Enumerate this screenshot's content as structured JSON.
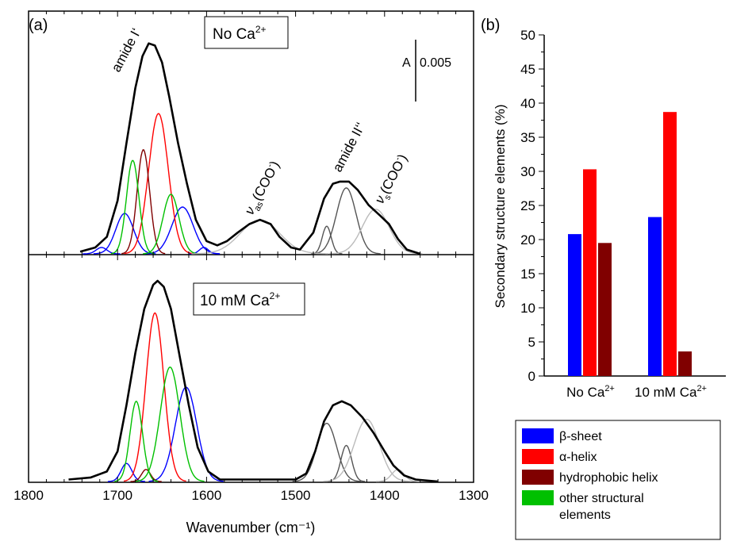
{
  "chart_data": [
    {
      "panel": "(a)",
      "type": "line",
      "xlabel": "Wavenumber (cm⁻¹)",
      "x_ticks": [
        1800,
        1700,
        1600,
        1500,
        1400,
        1300
      ],
      "xlim": [
        1800,
        1300
      ],
      "scale_bar": {
        "label": "A",
        "value": "0.005"
      },
      "subplots": [
        {
          "box_label": {
            "main": "No Ca",
            "sup": "2+"
          },
          "annotations": {
            "amide1": "amide I‘",
            "amide2": "amide II‘‘",
            "nu_as_base": "ν",
            "nu_as_sub": "as",
            "nu_as_paren": "(COO",
            "nu_as_sup": "-",
            "nu_as_close": ")",
            "nu_s_base": "ν",
            "nu_s_sub": "s",
            "nu_s_paren": "(COO",
            "nu_s_sup": "-",
            "nu_s_close": ")"
          },
          "envelope": [
            [
              1742,
              0.01
            ],
            [
              1725,
              0.03
            ],
            [
              1712,
              0.08
            ],
            [
              1700,
              0.25
            ],
            [
              1690,
              0.52
            ],
            [
              1680,
              0.78
            ],
            [
              1672,
              0.93
            ],
            [
              1665,
              0.99
            ],
            [
              1658,
              0.98
            ],
            [
              1650,
              0.9
            ],
            [
              1642,
              0.74
            ],
            [
              1632,
              0.52
            ],
            [
              1622,
              0.33
            ],
            [
              1612,
              0.16
            ],
            [
              1600,
              0.06
            ],
            [
              1588,
              0.04
            ],
            [
              1577,
              0.06
            ],
            [
              1565,
              0.1
            ],
            [
              1552,
              0.14
            ],
            [
              1540,
              0.16
            ],
            [
              1528,
              0.14
            ],
            [
              1518,
              0.08
            ],
            [
              1505,
              0.03
            ],
            [
              1495,
              0.02
            ],
            [
              1480,
              0.1
            ],
            [
              1468,
              0.26
            ],
            [
              1458,
              0.33
            ],
            [
              1450,
              0.34
            ],
            [
              1440,
              0.34
            ],
            [
              1430,
              0.3
            ],
            [
              1418,
              0.23
            ],
            [
              1405,
              0.18
            ],
            [
              1395,
              0.14
            ],
            [
              1385,
              0.07
            ],
            [
              1375,
              0.02
            ],
            [
              1360,
              0.0
            ]
          ],
          "components": [
            {
              "name": "β-sheet",
              "color": "#0000ff",
              "peaks": [
                {
                  "center": 1692,
                  "height": 0.19,
                  "width": 10
                },
                {
                  "center": 1627,
                  "height": 0.22,
                  "width": 12
                },
                {
                  "center": 1718,
                  "height": 0.03,
                  "width": 6
                },
                {
                  "center": 1603,
                  "height": 0.03,
                  "width": 5
                }
              ]
            },
            {
              "name": "α-helix",
              "color": "#ff0000",
              "peaks": [
                {
                  "center": 1654,
                  "height": 0.66,
                  "width": 11
                }
              ]
            },
            {
              "name": "hydrophobic helix",
              "color": "#800000",
              "peaks": [
                {
                  "center": 1671,
                  "height": 0.49,
                  "width": 7
                }
              ]
            },
            {
              "name": "other structural elements",
              "color": "#00c000",
              "peaks": [
                {
                  "center": 1683,
                  "height": 0.44,
                  "width": 7
                },
                {
                  "center": 1640,
                  "height": 0.28,
                  "width": 9
                }
              ]
            },
            {
              "name": "",
              "color": "#555555",
              "peaks": [
                {
                  "center": 1465,
                  "height": 0.13,
                  "width": 5
                },
                {
                  "center": 1443,
                  "height": 0.31,
                  "width": 11
                }
              ]
            },
            {
              "name": "",
              "color": "#bbbbbb",
              "peaks": [
                {
                  "center": 1540,
                  "height": 0.16,
                  "width": 22
                },
                {
                  "center": 1410,
                  "height": 0.21,
                  "width": 15
                }
              ]
            }
          ]
        },
        {
          "box_label": {
            "main": "10 mM Ca",
            "sup": "2+"
          },
          "envelope": [
            [
              1755,
              0.01
            ],
            [
              1730,
              0.02
            ],
            [
              1712,
              0.05
            ],
            [
              1700,
              0.15
            ],
            [
              1690,
              0.38
            ],
            [
              1680,
              0.64
            ],
            [
              1670,
              0.86
            ],
            [
              1660,
              0.98
            ],
            [
              1655,
              1.0
            ],
            [
              1648,
              0.97
            ],
            [
              1640,
              0.86
            ],
            [
              1630,
              0.62
            ],
            [
              1620,
              0.38
            ],
            [
              1610,
              0.17
            ],
            [
              1598,
              0.05
            ],
            [
              1585,
              0.01
            ],
            [
              1560,
              0.01
            ],
            [
              1520,
              0.01
            ],
            [
              1500,
              0.01
            ],
            [
              1488,
              0.04
            ],
            [
              1478,
              0.15
            ],
            [
              1468,
              0.3
            ],
            [
              1458,
              0.38
            ],
            [
              1448,
              0.4
            ],
            [
              1438,
              0.38
            ],
            [
              1425,
              0.32
            ],
            [
              1412,
              0.24
            ],
            [
              1400,
              0.15
            ],
            [
              1390,
              0.08
            ],
            [
              1378,
              0.03
            ],
            [
              1365,
              0.01
            ],
            [
              1340,
              0.0
            ]
          ],
          "components": [
            {
              "name": "β-sheet",
              "color": "#0000ff",
              "peaks": [
                {
                  "center": 1690,
                  "height": 0.09,
                  "width": 6
                },
                {
                  "center": 1623,
                  "height": 0.47,
                  "width": 12
                }
              ]
            },
            {
              "name": "α-helix",
              "color": "#ff0000",
              "peaks": [
                {
                  "center": 1658,
                  "height": 0.84,
                  "width": 10
                }
              ]
            },
            {
              "name": "hydrophobic helix",
              "color": "#800000",
              "peaks": [
                {
                  "center": 1668,
                  "height": 0.06,
                  "width": 5
                }
              ]
            },
            {
              "name": "other structural elements",
              "color": "#00c000",
              "peaks": [
                {
                  "center": 1679,
                  "height": 0.4,
                  "width": 7
                },
                {
                  "center": 1641,
                  "height": 0.57,
                  "width": 11
                }
              ]
            },
            {
              "name": "",
              "color": "#555555",
              "peaks": [
                {
                  "center": 1465,
                  "height": 0.29,
                  "width": 11
                },
                {
                  "center": 1443,
                  "height": 0.18,
                  "width": 6
                }
              ]
            },
            {
              "name": "",
              "color": "#bbbbbb",
              "peaks": [
                {
                  "center": 1420,
                  "height": 0.31,
                  "width": 14
                },
                {
                  "center": 1385,
                  "height": 0.06,
                  "width": 7
                }
              ]
            }
          ]
        }
      ]
    },
    {
      "panel": "(b)",
      "type": "bar",
      "categories": [
        {
          "main": "No Ca",
          "sup": "2+"
        },
        {
          "main": "10 mM Ca",
          "sup": "2+"
        }
      ],
      "ylabel": "Secondary structure elements (%)",
      "ylim": [
        0,
        50
      ],
      "y_ticks": [
        0,
        5,
        10,
        15,
        20,
        25,
        30,
        35,
        40,
        45,
        50
      ],
      "series": [
        {
          "name": "β-sheet",
          "color": "#0000ff",
          "values": [
            20.8,
            23.3
          ]
        },
        {
          "name": "α-helix",
          "color": "#ff0000",
          "values": [
            30.3,
            38.7
          ]
        },
        {
          "name": "hydrophobic helix",
          "color": "#800000",
          "values": [
            19.5,
            3.6
          ]
        }
      ],
      "legend": {
        "position": "bottom-right",
        "entries": [
          {
            "label": "β-sheet",
            "color": "#0000ff"
          },
          {
            "label": "α-helix",
            "color": "#ff0000"
          },
          {
            "label": "hydrophobic helix",
            "color": "#800000"
          },
          {
            "label": "other structural elements",
            "color": "#00c000"
          }
        ]
      }
    }
  ]
}
